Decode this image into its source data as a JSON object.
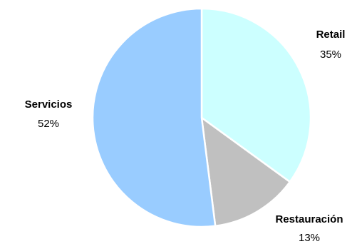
{
  "chart_data": {
    "type": "pie",
    "start_angle_deg": 0,
    "direction": "clockwise",
    "slices": [
      {
        "label": "Retail",
        "value": 35,
        "display": "35%",
        "color": "#ccffff"
      },
      {
        "label": "Restauración",
        "value": 13,
        "display": "13%",
        "color": "#c0c0c0"
      },
      {
        "label": "Servicios",
        "value": 52,
        "display": "52%",
        "color": "#99ccff"
      }
    ],
    "legend": "none",
    "slice_border_color": "#ffffff"
  }
}
